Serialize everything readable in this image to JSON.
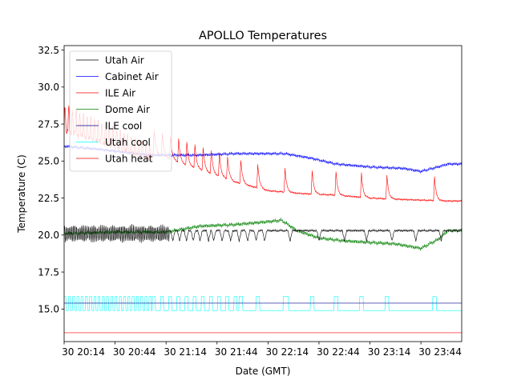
{
  "chart_data": {
    "type": "line",
    "title": "APOLLO Temperatures",
    "xlabel": "Date (GMT)",
    "ylabel": "Temperature (C)",
    "xlim_minutes": [
      0,
      234
    ],
    "ylim": [
      12.8,
      32.8
    ],
    "grid": false,
    "legend_position": "top-left",
    "y_ticks": [
      {
        "value": 15.0,
        "label": "15.0"
      },
      {
        "value": 17.5,
        "label": "17.5"
      },
      {
        "value": 20.0,
        "label": "20.0"
      },
      {
        "value": 22.5,
        "label": "22.5"
      },
      {
        "value": 25.0,
        "label": "25.0"
      },
      {
        "value": 27.5,
        "label": "27.5"
      },
      {
        "value": 30.0,
        "label": "30.0"
      },
      {
        "value": 32.5,
        "label": "32.5"
      }
    ],
    "x_ticks": [
      {
        "minute": 0,
        "label": "30 20:14"
      },
      {
        "minute": 30,
        "label": "30 20:44"
      },
      {
        "minute": 60,
        "label": "30 21:14"
      },
      {
        "minute": 90,
        "label": "30 21:44"
      },
      {
        "minute": 120,
        "label": "30 22:14"
      },
      {
        "minute": 150,
        "label": "30 22:44"
      },
      {
        "minute": 180,
        "label": "30 23:14"
      },
      {
        "minute": 210,
        "label": "30 23:44"
      }
    ],
    "series": [
      {
        "name": "Utah Air",
        "color": "#000000"
      },
      {
        "name": "Cabinet Air",
        "color": "#0000ff"
      },
      {
        "name": "ILE Air",
        "color": "#ff0000"
      },
      {
        "name": "Dome Air",
        "color": "#008000"
      },
      {
        "name": "ILE cool",
        "color": "#00008b"
      },
      {
        "name": "Utah cool",
        "color": "#00ffff"
      },
      {
        "name": "Utah heat",
        "color": "#ff0000"
      }
    ]
  }
}
